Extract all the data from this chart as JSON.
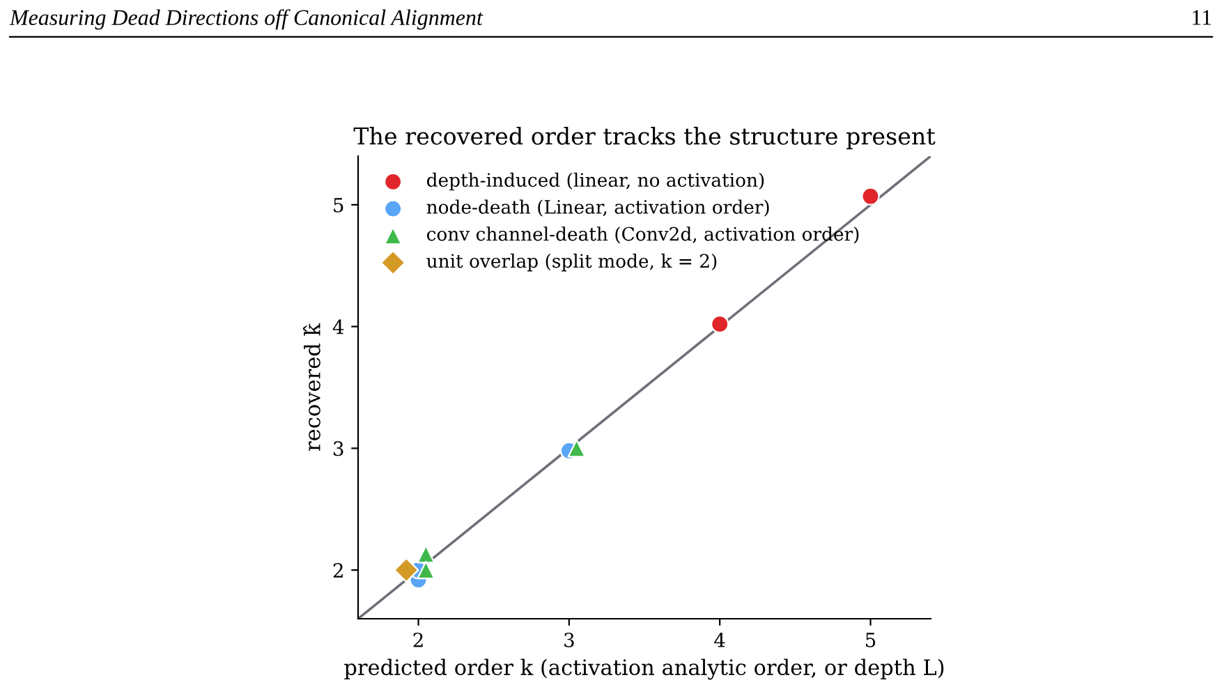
{
  "chart_data": {
    "type": "scatter",
    "title": "The recovered order tracks the structure present",
    "xlabel": "predicted order k (activation analytic order, or depth L)",
    "ylabel": "recovered k̂",
    "annotations": [
      "Measuring Dead Directions off Canonical Alignment",
      "11"
    ],
    "series": [
      {
        "type": "line",
        "color": "#6e7079",
        "marker": "none",
        "x": [
          1.6,
          5.4
        ],
        "values": [
          1.6,
          5.4
        ]
      },
      {
        "name": "depth-induced (linear, no activation)",
        "color": "#e0262a",
        "marker": "circle",
        "x": [
          4,
          5
        ],
        "values": [
          4.02,
          5.07
        ]
      },
      {
        "name": "node-death (Linear, activation order)",
        "color": "#5aa5f5",
        "marker": "circle",
        "x": [
          2,
          2,
          3
        ],
        "values": [
          1.92,
          2.0,
          2.98
        ]
      },
      {
        "name": "conv channel-death (Conv2d, activation order)",
        "color": "#3fb94a",
        "marker": "triangle",
        "x": [
          2.05,
          2.05,
          3.05
        ],
        "values": [
          2.13,
          2.0,
          3.0
        ]
      },
      {
        "name": "unit overlap (split mode, k = 2)",
        "color": "#d49a26",
        "marker": "diamond",
        "x": [
          1.92
        ],
        "values": [
          2.0
        ]
      }
    ],
    "xlim": [
      1.6,
      5.4
    ],
    "ylim": [
      1.6,
      5.4
    ],
    "xticks": [
      2,
      3,
      4,
      5
    ],
    "yticks": [
      2,
      3,
      4,
      5
    ],
    "grid": false,
    "legend": "top left"
  }
}
